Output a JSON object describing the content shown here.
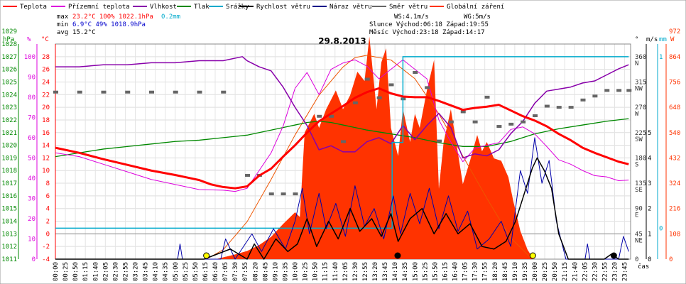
{
  "chart_data": {
    "type": "line",
    "title": "29.8.2013",
    "legend": [
      {
        "name": "Teplota",
        "color": "#ff0000"
      },
      {
        "name": "Přízemní teplota",
        "color": "#dd00dd"
      },
      {
        "name": "Vlhkost",
        "color": "#8800aa"
      },
      {
        "name": "Tlak",
        "color": "#008800"
      },
      {
        "name": "Srážky",
        "color": "#00aacc"
      },
      {
        "name": "Rychlost větru",
        "color": "#000000"
      },
      {
        "name": "Náraz větru",
        "color": "#000088"
      },
      {
        "name": "Směr větru",
        "color": "#666666"
      },
      {
        "name": "Globální záření",
        "color": "#ff3300"
      }
    ],
    "stats": {
      "max_label": "max",
      "min_label": "min",
      "avg_label": "avg",
      "max_values": "23.2°C 100% 1022.1hPa",
      "max_rain": "0.2mm",
      "min_values": "6.9°C  49% 1018.9hPa",
      "avg_values": "15.2°C",
      "ws": "WS:4.1m/s",
      "wg": "WG:5m/s",
      "sun": "Slunce Východ:06:18  Západ:19:55",
      "moon": "Měsíc  Východ:23:18  Západ:14:17"
    },
    "axes_titles": {
      "hpa": "hPa",
      "pct": "%",
      "deg": "°C",
      "dir": "°",
      "ms": "m/s",
      "mm": "mm",
      "w": "W",
      "x": "čas"
    },
    "ylim_temp": [
      -4,
      30
    ],
    "hpa_ticks": [
      1011,
      1012,
      1013,
      1014,
      1015,
      1016,
      1017,
      1018,
      1019,
      1020,
      1021,
      1022,
      1023,
      1024,
      1025,
      1026,
      1027,
      1028,
      1029
    ],
    "pct_ticks": [
      0,
      10,
      20,
      30,
      40,
      50,
      60,
      70,
      80,
      90,
      100
    ],
    "temp_ticks": [
      -4,
      -2,
      0,
      2,
      4,
      6,
      8,
      10,
      12,
      14,
      16,
      18,
      20,
      22,
      24,
      26,
      28
    ],
    "dir_ticks": [
      "0",
      "45 NE",
      "90 E",
      "135 SE",
      "180 S",
      "225 SW",
      "270 W",
      "315 NW",
      "360 N"
    ],
    "ms_ticks": [
      0,
      1,
      2,
      3,
      4,
      5
    ],
    "w_ticks": [
      0,
      108,
      216,
      324,
      432,
      540,
      648,
      756,
      864,
      972
    ],
    "x_ticks": [
      "00:00",
      "00:25",
      "00:50",
      "01:15",
      "01:40",
      "02:05",
      "02:30",
      "02:55",
      "03:20",
      "03:45",
      "04:10",
      "04:35",
      "05:00",
      "05:25",
      "05:50",
      "06:15",
      "06:40",
      "07:05",
      "07:30",
      "07:55",
      "08:20",
      "08:45",
      "09:10",
      "09:35",
      "10:00",
      "10:25",
      "10:50",
      "11:15",
      "11:40",
      "12:05",
      "12:30",
      "12:55",
      "13:20",
      "13:45",
      "14:10",
      "14:35",
      "15:00",
      "15:25",
      "15:50",
      "16:15",
      "16:40",
      "17:05",
      "17:30",
      "17:55",
      "18:20",
      "18:45",
      "19:10",
      "19:35",
      "20:00",
      "20:25",
      "20:50",
      "21:15",
      "21:40",
      "22:05",
      "22:30",
      "22:55",
      "23:20",
      "23:45"
    ],
    "temperature": [
      [
        0,
        13.6
      ],
      [
        1,
        12.8
      ],
      [
        2,
        11.8
      ],
      [
        3,
        10.9
      ],
      [
        4,
        10.0
      ],
      [
        5,
        9.3
      ],
      [
        6,
        8.5
      ],
      [
        6.5,
        7.8
      ],
      [
        7,
        7.4
      ],
      [
        7.5,
        7.2
      ],
      [
        8,
        7.5
      ],
      [
        8.5,
        9.2
      ],
      [
        9,
        10.3
      ],
      [
        9.5,
        12.2
      ],
      [
        10,
        14.0
      ],
      [
        10.5,
        16.0
      ],
      [
        11,
        17.8
      ],
      [
        11.5,
        19.0
      ],
      [
        12,
        20.2
      ],
      [
        12.5,
        21.5
      ],
      [
        13,
        22.4
      ],
      [
        13.5,
        23.0
      ],
      [
        14,
        22.2
      ],
      [
        14.5,
        21.7
      ],
      [
        15,
        21.6
      ],
      [
        15.5,
        21.6
      ],
      [
        16,
        21.0
      ],
      [
        16.5,
        20.3
      ],
      [
        17,
        19.6
      ],
      [
        17.5,
        19.9
      ],
      [
        18,
        20.1
      ],
      [
        18.5,
        20.4
      ],
      [
        19,
        19.5
      ],
      [
        19.5,
        18.6
      ],
      [
        20,
        17.9
      ],
      [
        20.5,
        17.0
      ],
      [
        21,
        15.8
      ],
      [
        21.5,
        14.8
      ],
      [
        22,
        13.6
      ],
      [
        22.5,
        12.8
      ],
      [
        23,
        12.1
      ],
      [
        23.5,
        11.4
      ],
      [
        23.92,
        11.0
      ]
    ],
    "ground_temperature": [
      [
        0,
        12.8
      ],
      [
        1,
        12.2
      ],
      [
        2,
        11.0
      ],
      [
        3,
        9.8
      ],
      [
        4,
        8.6
      ],
      [
        5,
        7.8
      ],
      [
        6,
        7.0
      ],
      [
        7,
        6.9
      ],
      [
        7.5,
        6.7
      ],
      [
        8,
        7.2
      ],
      [
        8.5,
        10.0
      ],
      [
        9,
        12.8
      ],
      [
        9.5,
        17.0
      ],
      [
        10,
        23.0
      ],
      [
        10.5,
        25.5
      ],
      [
        11,
        22.0
      ],
      [
        11.5,
        26.0
      ],
      [
        12,
        27.0
      ],
      [
        12.5,
        27.5
      ],
      [
        13,
        26.5
      ],
      [
        13.5,
        24.5
      ],
      [
        14,
        26.0
      ],
      [
        14.5,
        27.5
      ],
      [
        15,
        26.0
      ],
      [
        15.5,
        24.5
      ],
      [
        16,
        18.0
      ],
      [
        16.5,
        14.5
      ],
      [
        17,
        11.4
      ],
      [
        17.5,
        13.5
      ],
      [
        18,
        14.0
      ],
      [
        18.5,
        14.4
      ],
      [
        19,
        16.5
      ],
      [
        19.5,
        16.9
      ],
      [
        20,
        15.8
      ],
      [
        20.5,
        13.8
      ],
      [
        21,
        11.7
      ],
      [
        21.5,
        11.0
      ],
      [
        22,
        10.0
      ],
      [
        22.5,
        9.2
      ],
      [
        23,
        9.0
      ],
      [
        23.5,
        8.4
      ],
      [
        23.92,
        8.5
      ]
    ],
    "humidity": [
      [
        0,
        95
      ],
      [
        1,
        95
      ],
      [
        2,
        96
      ],
      [
        3,
        96
      ],
      [
        4,
        97
      ],
      [
        5,
        97
      ],
      [
        6,
        98
      ],
      [
        7,
        98
      ],
      [
        7.8,
        100
      ],
      [
        8,
        98
      ],
      [
        8.5,
        95
      ],
      [
        9,
        93
      ],
      [
        9.5,
        85
      ],
      [
        10,
        75
      ],
      [
        10.5,
        66
      ],
      [
        11,
        54
      ],
      [
        11.5,
        56
      ],
      [
        12,
        53
      ],
      [
        12.5,
        53
      ],
      [
        13,
        58
      ],
      [
        13.5,
        60
      ],
      [
        14,
        57
      ],
      [
        14.5,
        66
      ],
      [
        15,
        59
      ],
      [
        15.5,
        66
      ],
      [
        16,
        72
      ],
      [
        16.5,
        65
      ],
      [
        17,
        50
      ],
      [
        17.5,
        52
      ],
      [
        18,
        51
      ],
      [
        18.5,
        54
      ],
      [
        19,
        62
      ],
      [
        19.5,
        68
      ],
      [
        20,
        77
      ],
      [
        20.5,
        83
      ],
      [
        21,
        84
      ],
      [
        21.5,
        85
      ],
      [
        22,
        87
      ],
      [
        22.5,
        88
      ],
      [
        23,
        91
      ],
      [
        23.5,
        94
      ],
      [
        23.92,
        96
      ]
    ],
    "pressure": [
      [
        0,
        1019.1
      ],
      [
        1,
        1019.4
      ],
      [
        2,
        1019.7
      ],
      [
        3,
        1019.9
      ],
      [
        4,
        1020.1
      ],
      [
        5,
        1020.3
      ],
      [
        6,
        1020.4
      ],
      [
        7,
        1020.6
      ],
      [
        7.5,
        1020.7
      ],
      [
        8,
        1020.8
      ],
      [
        8.5,
        1021.0
      ],
      [
        9,
        1021.2
      ],
      [
        9.5,
        1021.4
      ],
      [
        10,
        1021.6
      ],
      [
        10.5,
        1021.8
      ],
      [
        11,
        1021.9
      ],
      [
        11.5,
        1021.8
      ],
      [
        12,
        1021.6
      ],
      [
        12.5,
        1021.4
      ],
      [
        13,
        1021.2
      ],
      [
        14,
        1020.9
      ],
      [
        15,
        1020.6
      ],
      [
        16,
        1020.2
      ],
      [
        17,
        1019.9
      ],
      [
        18,
        1019.9
      ],
      [
        19,
        1020.3
      ],
      [
        20,
        1020.9
      ],
      [
        21,
        1021.3
      ],
      [
        22,
        1021.6
      ],
      [
        23,
        1021.9
      ],
      [
        23.92,
        1022.1
      ]
    ],
    "rain_total": [
      [
        0,
        0
      ],
      [
        14.0,
        0
      ],
      [
        14.05,
        0.1
      ],
      [
        14.5,
        0.2
      ],
      [
        23.92,
        0.2
      ]
    ],
    "wind_speed": [
      [
        0,
        0
      ],
      [
        6.2,
        0
      ],
      [
        7.3,
        0.4
      ],
      [
        8.0,
        0
      ],
      [
        8.3,
        0.6
      ],
      [
        8.7,
        0
      ],
      [
        9.2,
        0.8
      ],
      [
        9.7,
        0.3
      ],
      [
        10.1,
        0.6
      ],
      [
        10.5,
        1.6
      ],
      [
        10.9,
        0.5
      ],
      [
        11.4,
        1.5
      ],
      [
        11.8,
        0.8
      ],
      [
        12.3,
        2.0
      ],
      [
        12.7,
        1.1
      ],
      [
        13.2,
        1.6
      ],
      [
        13.6,
        0.9
      ],
      [
        14.0,
        1.8
      ],
      [
        14.3,
        0.7
      ],
      [
        14.8,
        1.6
      ],
      [
        15.3,
        2.0
      ],
      [
        15.8,
        1.0
      ],
      [
        16.3,
        1.8
      ],
      [
        16.8,
        1.0
      ],
      [
        17.3,
        1.4
      ],
      [
        17.8,
        0.5
      ],
      [
        18.3,
        0.4
      ],
      [
        18.8,
        0.7
      ],
      [
        19.2,
        1.5
      ],
      [
        19.5,
        2.4
      ],
      [
        19.9,
        3.6
      ],
      [
        20.1,
        4.0
      ],
      [
        20.4,
        3.5
      ],
      [
        20.7,
        2.8
      ],
      [
        21.0,
        1.0
      ],
      [
        21.4,
        0
      ],
      [
        22.9,
        0
      ],
      [
        23.2,
        0.2
      ],
      [
        23.5,
        0
      ],
      [
        23.92,
        0
      ]
    ],
    "wind_gust": [
      [
        0,
        0
      ],
      [
        5.1,
        0
      ],
      [
        5.2,
        0.6
      ],
      [
        5.3,
        0
      ],
      [
        6.9,
        0
      ],
      [
        7.1,
        0.8
      ],
      [
        7.5,
        0
      ],
      [
        8.2,
        1.0
      ],
      [
        8.6,
        0.3
      ],
      [
        9.1,
        1.2
      ],
      [
        9.6,
        0.4
      ],
      [
        10.0,
        1.5
      ],
      [
        10.3,
        2.8
      ],
      [
        10.6,
        1.0
      ],
      [
        11.0,
        2.6
      ],
      [
        11.3,
        1.2
      ],
      [
        11.7,
        2.2
      ],
      [
        12.1,
        0.9
      ],
      [
        12.5,
        2.9
      ],
      [
        12.9,
        1.3
      ],
      [
        13.3,
        2.0
      ],
      [
        13.7,
        0.8
      ],
      [
        14.1,
        2.5
      ],
      [
        14.4,
        1.0
      ],
      [
        14.8,
        2.6
      ],
      [
        15.2,
        1.4
      ],
      [
        15.6,
        2.8
      ],
      [
        16.0,
        1.2
      ],
      [
        16.4,
        2.5
      ],
      [
        16.8,
        1.1
      ],
      [
        17.2,
        1.9
      ],
      [
        17.6,
        0.4
      ],
      [
        18.1,
        0.8
      ],
      [
        18.6,
        1.5
      ],
      [
        19.0,
        0.5
      ],
      [
        19.4,
        3.5
      ],
      [
        19.7,
        2.6
      ],
      [
        20.0,
        4.8
      ],
      [
        20.3,
        3.0
      ],
      [
        20.6,
        3.9
      ],
      [
        20.9,
        1.5
      ],
      [
        21.3,
        0
      ],
      [
        22.1,
        0
      ],
      [
        22.2,
        0.6
      ],
      [
        22.3,
        0
      ],
      [
        23.5,
        0
      ],
      [
        23.7,
        0.9
      ],
      [
        23.92,
        0.3
      ]
    ],
    "wind_direction": [
      [
        0,
        297
      ],
      [
        1,
        297
      ],
      [
        2,
        297
      ],
      [
        3,
        297
      ],
      [
        4,
        297
      ],
      [
        5,
        297
      ],
      [
        6,
        297
      ],
      [
        7,
        297
      ],
      [
        8,
        149
      ],
      [
        8.5,
        149
      ],
      [
        9,
        116
      ],
      [
        9.5,
        116
      ],
      [
        10,
        116
      ],
      [
        11,
        254
      ],
      [
        11.5,
        254
      ],
      [
        12,
        209
      ],
      [
        12.5,
        278
      ],
      [
        13,
        320
      ],
      [
        13.5,
        287
      ],
      [
        14,
        310
      ],
      [
        14.5,
        285
      ],
      [
        15,
        332
      ],
      [
        15.5,
        305
      ],
      [
        16,
        210
      ],
      [
        16.5,
        244
      ],
      [
        17,
        262
      ],
      [
        17.5,
        244
      ],
      [
        18,
        288
      ],
      [
        18.5,
        236
      ],
      [
        19,
        240
      ],
      [
        19.5,
        244
      ],
      [
        20,
        255
      ],
      [
        20.5,
        272
      ],
      [
        21,
        270
      ],
      [
        21.5,
        270
      ],
      [
        22,
        283
      ],
      [
        22.5,
        290
      ],
      [
        23,
        300
      ],
      [
        23.5,
        300
      ],
      [
        23.92,
        300
      ]
    ],
    "solar_radiation": [
      [
        0,
        0
      ],
      [
        6.7,
        0
      ],
      [
        7.5,
        20
      ],
      [
        8.0,
        35
      ],
      [
        8.5,
        60
      ],
      [
        9.0,
        95
      ],
      [
        9.5,
        150
      ],
      [
        10.0,
        200
      ],
      [
        10.2,
        180
      ],
      [
        10.4,
        540
      ],
      [
        10.8,
        620
      ],
      [
        11.0,
        560
      ],
      [
        11.3,
        640
      ],
      [
        11.7,
        720
      ],
      [
        12.0,
        640
      ],
      [
        12.3,
        700
      ],
      [
        12.6,
        800
      ],
      [
        12.9,
        760
      ],
      [
        13.1,
        950
      ],
      [
        13.4,
        640
      ],
      [
        13.6,
        840
      ],
      [
        13.8,
        900
      ],
      [
        14.0,
        560
      ],
      [
        14.3,
        440
      ],
      [
        14.5,
        640
      ],
      [
        14.8,
        500
      ],
      [
        15.0,
        620
      ],
      [
        15.2,
        560
      ],
      [
        15.5,
        720
      ],
      [
        15.8,
        850
      ],
      [
        16.0,
        300
      ],
      [
        16.2,
        500
      ],
      [
        16.5,
        640
      ],
      [
        16.8,
        450
      ],
      [
        17.0,
        320
      ],
      [
        17.3,
        420
      ],
      [
        17.6,
        530
      ],
      [
        17.8,
        460
      ],
      [
        18.0,
        500
      ],
      [
        18.3,
        430
      ],
      [
        18.6,
        420
      ],
      [
        18.9,
        350
      ],
      [
        19.1,
        250
      ],
      [
        19.4,
        120
      ],
      [
        19.7,
        40
      ],
      [
        19.95,
        0
      ],
      [
        23.92,
        0
      ]
    ],
    "solar_theoretical": [
      [
        6.3,
        0
      ],
      [
        7,
        40
      ],
      [
        8,
        160
      ],
      [
        9,
        340
      ],
      [
        10,
        530
      ],
      [
        11,
        700
      ],
      [
        12,
        820
      ],
      [
        12.5,
        860
      ],
      [
        13,
        870
      ],
      [
        14,
        850
      ],
      [
        15,
        770
      ],
      [
        16,
        620
      ],
      [
        17,
        440
      ],
      [
        18,
        260
      ],
      [
        19,
        90
      ],
      [
        19.9,
        0
      ]
    ],
    "markers": {
      "sunrise": 6.3,
      "sunset": 19.92,
      "moonrise": 23.3,
      "moonset": 14.28
    }
  }
}
